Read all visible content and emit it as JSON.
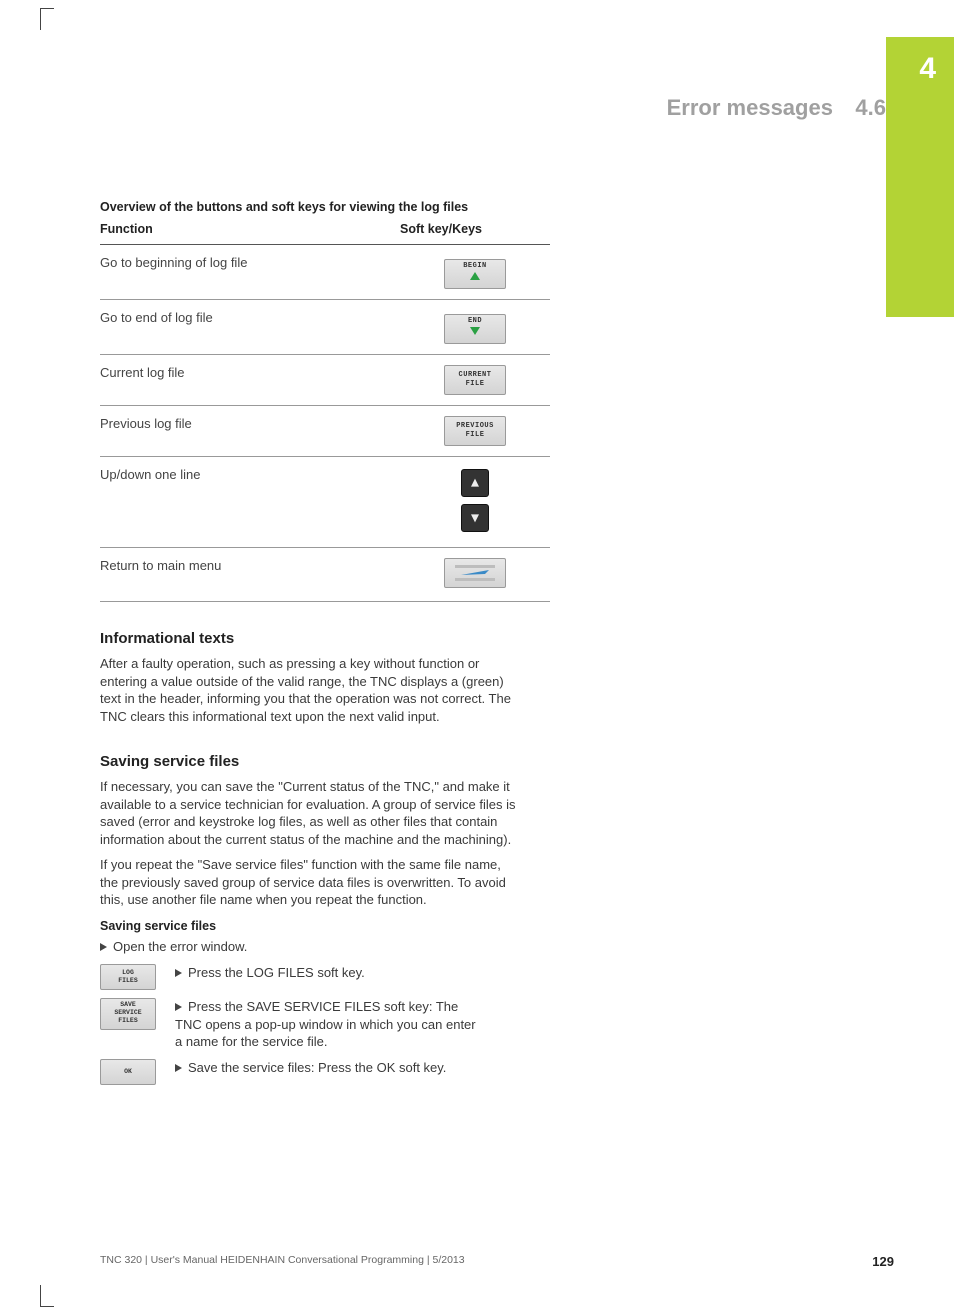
{
  "colors": {
    "accent_tab": "#b3d335",
    "header_gray": "#a0a0a0",
    "body_text": "#3a3a3a",
    "rule": "#999999",
    "softkey_bg_top": "#e8e8e8",
    "softkey_bg_bot": "#d4d4d4",
    "softkey_border": "#9a9a9a",
    "arrow_green": "#2aa043",
    "hardkey_bg": "#333333"
  },
  "typography": {
    "body_fontsize_pt": 10,
    "heading_fontsize_pt": 11,
    "header_title_fontsize_pt": 17,
    "chapter_num_fontsize_pt": 22,
    "font_family": "Arial"
  },
  "chapter": {
    "number": "4"
  },
  "header": {
    "title": "Error messages",
    "section": "4.6"
  },
  "table": {
    "caption": "Overview of the buttons and soft keys for viewing the log files",
    "columns": [
      "Function",
      "Soft key/Keys"
    ],
    "rows": [
      {
        "function": "Go to beginning of log file",
        "key_label": "BEGIN",
        "key_kind": "softkey_arrow_up"
      },
      {
        "function": "Go to end of log file",
        "key_label": "END",
        "key_kind": "softkey_arrow_down"
      },
      {
        "function": "Current log file",
        "key_label": "CURRENT\nFILE",
        "key_kind": "softkey_text2"
      },
      {
        "function": "Previous log file",
        "key_label": "PREVIOUS\nFILE",
        "key_kind": "softkey_text2"
      },
      {
        "function": "Up/down one line",
        "key_label": "",
        "key_kind": "hardkey_up_down"
      },
      {
        "function": "Return to main menu",
        "key_label": "",
        "key_kind": "softkey_return"
      }
    ]
  },
  "section_info": {
    "heading": "Informational texts",
    "body": "After a faulty operation, such as pressing a key without function or entering a value outside of the valid range, the TNC displays a (green) text in the header, informing you that the operation was not correct. The TNC clears this informational text upon the next valid input."
  },
  "section_save": {
    "heading": "Saving service files",
    "body1": "If necessary, you can save the \"Current status of the TNC,\" and make it available to a service technician for evaluation. A group of service files is saved (error and keystroke log files, as well as other files that contain information about the current status of the machine and the machining).",
    "body2": "If you repeat the \"Save service files\" function with the same file name, the previously saved group of service data files is overwritten. To avoid this, use another file name when you repeat the function.",
    "subhead": "Saving service files",
    "step0": "Open the error window.",
    "steps": [
      {
        "key_label": "LOG\nFILES",
        "text": "Press the LOG FILES soft key."
      },
      {
        "key_label": "SAVE\nSERVICE\nFILES",
        "text": "Press the SAVE SERVICE FILES soft key: The TNC opens a pop-up window in which you can enter a name for the service file."
      },
      {
        "key_label": "OK",
        "text": "Save the service files: Press the OK soft key."
      }
    ]
  },
  "footer": {
    "text": "TNC 320 | User's Manual HEIDENHAIN Conversational Programming | 5/2013",
    "page": "129"
  }
}
